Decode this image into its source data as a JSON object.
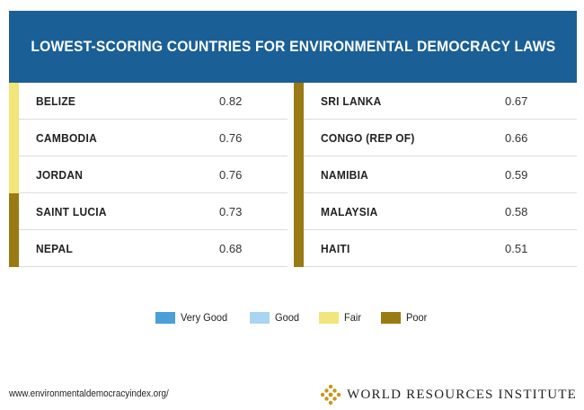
{
  "chart_data": {
    "type": "table",
    "title": "LOWEST-SCORING COUNTRIES FOR ENVIRONMENTAL DEMOCRACY LAWS",
    "columns": [
      {
        "rows": [
          {
            "country": "BELIZE",
            "score": "0.82",
            "rating": "Fair"
          },
          {
            "country": "CAMBODIA",
            "score": "0.76",
            "rating": "Fair"
          },
          {
            "country": "JORDAN",
            "score": "0.76",
            "rating": "Fair"
          },
          {
            "country": "SAINT LUCIA",
            "score": "0.73",
            "rating": "Poor"
          },
          {
            "country": "NEPAL",
            "score": "0.68",
            "rating": "Poor"
          }
        ]
      },
      {
        "rows": [
          {
            "country": "SRI LANKA",
            "score": "0.67",
            "rating": "Poor"
          },
          {
            "country": "CONGO (REP OF)",
            "score": "0.66",
            "rating": "Poor"
          },
          {
            "country": "NAMIBIA",
            "score": "0.59",
            "rating": "Poor"
          },
          {
            "country": "MALAYSIA",
            "score": "0.58",
            "rating": "Poor"
          },
          {
            "country": "HAITI",
            "score": "0.51",
            "rating": "Poor"
          }
        ]
      }
    ],
    "legend": [
      {
        "label": "Very Good",
        "color": "#4a9fd8"
      },
      {
        "label": "Good",
        "color": "#a9d4f2"
      },
      {
        "label": "Fair",
        "color": "#f2e57a"
      },
      {
        "label": "Poor",
        "color": "#9a7a12"
      }
    ]
  },
  "footer": {
    "url": "www.environmentaldemocracyindex.org/",
    "org": "WORLD RESOURCES INSTITUTE"
  },
  "colors": {
    "header_bg": "#1a5f96",
    "logo": "#c9961a"
  }
}
